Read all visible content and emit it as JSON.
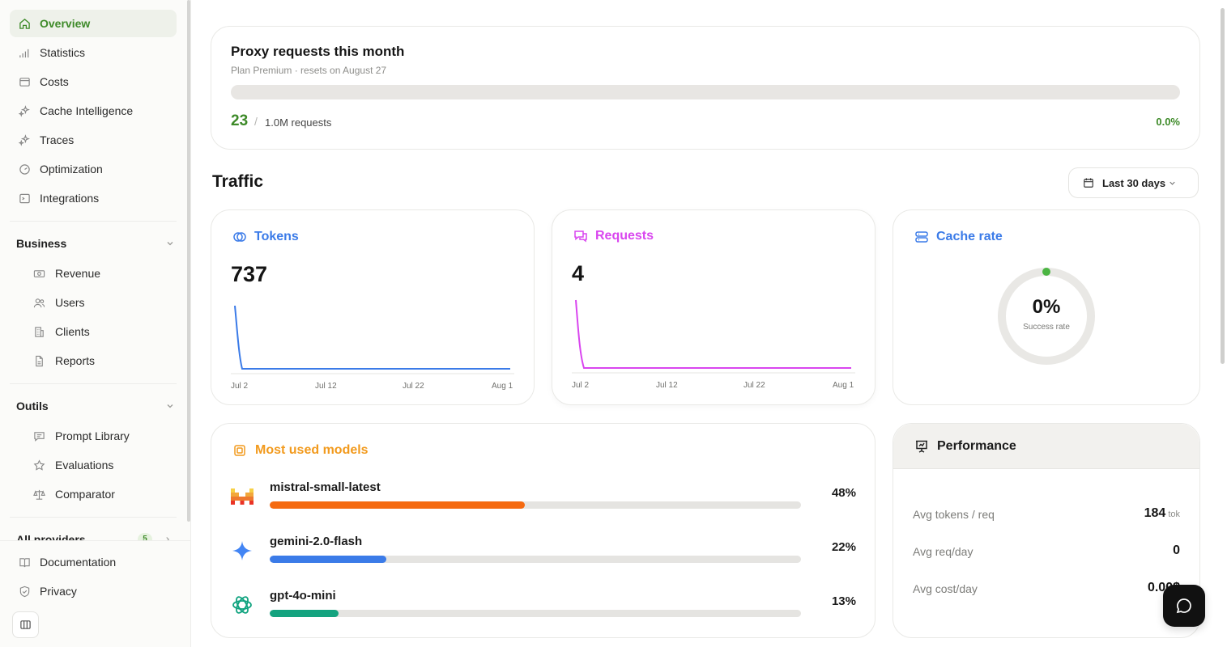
{
  "sidebar": {
    "main_items": [
      {
        "label": "Overview",
        "icon": "home-icon"
      },
      {
        "label": "Statistics",
        "icon": "bar-chart-icon"
      },
      {
        "label": "Costs",
        "icon": "wallet-icon"
      },
      {
        "label": "Cache Intelligence",
        "icon": "sparkles-icon"
      },
      {
        "label": "Traces",
        "icon": "sparkles-icon"
      },
      {
        "label": "Optimization",
        "icon": "gauge-icon"
      },
      {
        "label": "Integrations",
        "icon": "terminal-icon"
      }
    ],
    "business": {
      "title": "Business",
      "items": [
        {
          "label": "Revenue",
          "icon": "banknote-icon"
        },
        {
          "label": "Users",
          "icon": "users-icon"
        },
        {
          "label": "Clients",
          "icon": "building-icon"
        },
        {
          "label": "Reports",
          "icon": "file-icon"
        }
      ]
    },
    "outils": {
      "title": "Outils",
      "items": [
        {
          "label": "Prompt Library",
          "icon": "message-icon"
        },
        {
          "label": "Evaluations",
          "icon": "star-icon"
        },
        {
          "label": "Comparator",
          "icon": "scale-icon"
        }
      ]
    },
    "providers": {
      "title": "All providers",
      "count": "5"
    },
    "bottom_items": [
      {
        "label": "Documentation",
        "icon": "book-icon"
      },
      {
        "label": "Privacy",
        "icon": "shield-icon"
      }
    ]
  },
  "proxy": {
    "title": "Proxy requests this month",
    "subtitle": "Plan Premium · resets on August 27",
    "used": "23",
    "separator": "/",
    "total": "1.0M requests",
    "percent": "0.0%",
    "progress_fraction": 0.0
  },
  "traffic": {
    "title": "Traffic",
    "range": "Last 30 days"
  },
  "tokens": {
    "title": "Tokens",
    "value": "737",
    "color": "#3b7be8",
    "ticks": [
      "Jul 2",
      "Jul 12",
      "Jul 22",
      "Aug 1"
    ]
  },
  "requests": {
    "title": "Requests",
    "value": "4",
    "color": "#d946ef",
    "ticks": [
      "Jul 2",
      "Jul 12",
      "Jul 22",
      "Aug 1"
    ]
  },
  "cache": {
    "title": "Cache rate",
    "value": "0%",
    "label": "Success rate",
    "color": "#3b7be8",
    "rate": 0
  },
  "models": {
    "title": "Most used models",
    "items": [
      {
        "name": "mistral-small-latest",
        "percent": "48%",
        "share": 0.48,
        "color": "#f56a10",
        "logo": "mistral-logo-icon"
      },
      {
        "name": "gemini-2.0-flash",
        "percent": "22%",
        "share": 0.22,
        "color": "#3b7be8",
        "logo": "gemini-logo-icon"
      },
      {
        "name": "gpt-4o-mini",
        "percent": "13%",
        "share": 0.13,
        "color": "#14a37f",
        "logo": "openai-logo-icon"
      }
    ]
  },
  "performance": {
    "title": "Performance",
    "rows": [
      {
        "label": "Avg tokens / req",
        "value": "184",
        "unit": "tok"
      },
      {
        "label": "Avg req/day",
        "value": "0",
        "unit": ""
      },
      {
        "label": "Avg cost/day",
        "value": "0.00$",
        "unit": ""
      }
    ]
  }
}
